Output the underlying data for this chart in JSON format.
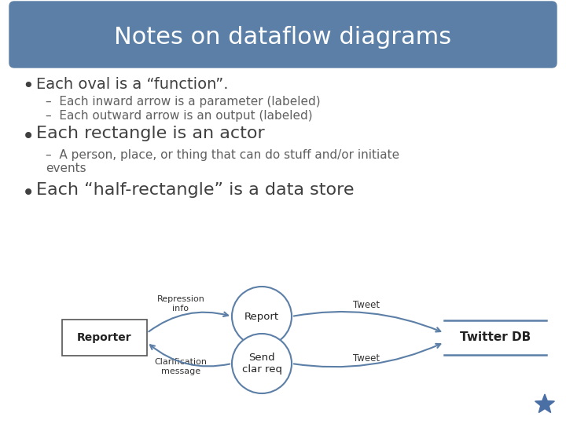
{
  "title": "Notes on dataflow diagrams",
  "title_bg": "#5b7fa6",
  "title_color": "#ffffff",
  "bg_color": "#ffffff",
  "bullet_color": "#404040",
  "sub_color": "#606060",
  "bullet1": "Each oval is a “function”.",
  "sub1a": "Each inward arrow is a parameter (labeled)",
  "sub1b": "Each outward arrow is an output (labeled)",
  "bullet2": "Each rectangle is an actor",
  "sub2a": "A person, place, or thing that can do stuff and/or initiate\nevents",
  "bullet3": "Each “half-rectangle” is a data store",
  "diagram": {
    "reporter_label": "Reporter",
    "oval1_label": "Report",
    "oval2_label": "Send\nclar req",
    "db_label": "Twitter DB",
    "arrow1_label": "Repression\ninfo",
    "arrow2_label": "Clarification\nmessage",
    "tweet1_label": "Tweet",
    "tweet2_label": "Tweet",
    "arrow_color": "#5b7fa6",
    "oval_edge_color": "#5b7fa6",
    "rect_edge_color": "#555555"
  },
  "star_color": "#4a6fa5"
}
